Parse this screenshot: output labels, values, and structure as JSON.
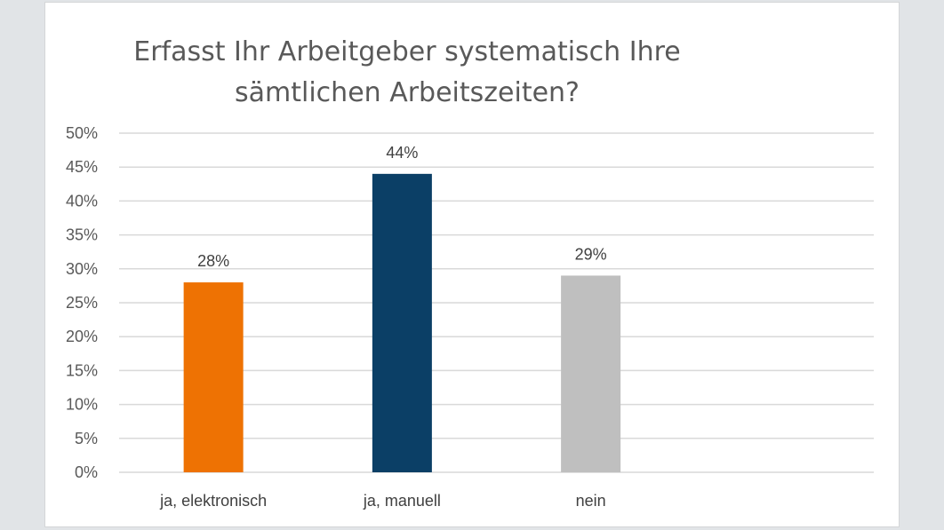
{
  "chart_data": {
    "type": "bar",
    "title_lines": [
      "Erfasst Ihr Arbeitgeber systematisch Ihre",
      "sämtlichen Arbeitszeiten?"
    ],
    "categories": [
      "ja, elektronisch",
      "ja, manuell",
      "nein"
    ],
    "values": [
      28,
      44,
      29
    ],
    "data_labels": [
      "28%",
      "44%",
      "29%"
    ],
    "colors": [
      "#ee7203",
      "#0b3f66",
      "#bfbfbf"
    ],
    "ylim": [
      0,
      50
    ],
    "yticks": [
      0,
      5,
      10,
      15,
      20,
      25,
      30,
      35,
      40,
      45,
      50
    ],
    "ytick_labels": [
      "0%",
      "5%",
      "10%",
      "15%",
      "20%",
      "25%",
      "30%",
      "35%",
      "40%",
      "45%",
      "50%"
    ],
    "grid": true,
    "legend": "none",
    "xlabel": "",
    "ylabel": ""
  }
}
